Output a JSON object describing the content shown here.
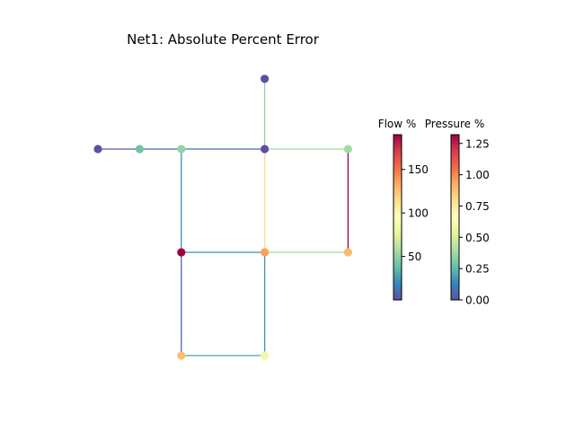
{
  "title": "Net1: Absolute Percent Error",
  "colorbars": {
    "flow": {
      "label": "Flow %",
      "range": [
        0,
        190
      ],
      "ticks": [
        {
          "value": 50,
          "label": "50"
        },
        {
          "value": 100,
          "label": "100"
        },
        {
          "value": 150,
          "label": "150"
        }
      ]
    },
    "pressure": {
      "label": "Pressure %",
      "range": [
        0,
        1.32
      ],
      "ticks": [
        {
          "value": 0.0,
          "label": "0.00"
        },
        {
          "value": 0.25,
          "label": "0.25"
        },
        {
          "value": 0.5,
          "label": "0.50"
        },
        {
          "value": 0.75,
          "label": "0.75"
        },
        {
          "value": 1.0,
          "label": "1.00"
        },
        {
          "value": 1.25,
          "label": "1.25"
        }
      ]
    }
  },
  "colormap": [
    "#5e4fa2",
    "#3288bd",
    "#66c2a5",
    "#abdda4",
    "#e6f598",
    "#ffffbf",
    "#fee08b",
    "#fdae61",
    "#f46d43",
    "#d53e4f",
    "#9e0142"
  ],
  "network": {
    "nodes": [
      {
        "id": "n1",
        "x": 0,
        "y": 2,
        "pressure_error": 0.0
      },
      {
        "id": "n2",
        "x": 1,
        "y": 2,
        "pressure_error": 0.28
      },
      {
        "id": "n3",
        "x": 2,
        "y": 2,
        "pressure_error": 0.35
      },
      {
        "id": "n4",
        "x": 4,
        "y": 2,
        "pressure_error": 0.0
      },
      {
        "id": "n5",
        "x": 6,
        "y": 2,
        "pressure_error": 0.38
      },
      {
        "id": "n6",
        "x": 4,
        "y": 3.7,
        "pressure_error": 0.0
      },
      {
        "id": "n7",
        "x": 2,
        "y": -0.5,
        "pressure_error": 1.32
      },
      {
        "id": "n8",
        "x": 4,
        "y": -0.5,
        "pressure_error": 0.95
      },
      {
        "id": "n9",
        "x": 6,
        "y": -0.5,
        "pressure_error": 0.9
      },
      {
        "id": "n10",
        "x": 2,
        "y": -3,
        "pressure_error": 0.88
      },
      {
        "id": "n11",
        "x": 4,
        "y": -3,
        "pressure_error": 0.58
      }
    ],
    "links": [
      {
        "from": "n1",
        "to": "n2",
        "flow_error": 4
      },
      {
        "from": "n2",
        "to": "n3",
        "flow_error": 8
      },
      {
        "from": "n3",
        "to": "n4",
        "flow_error": 10
      },
      {
        "from": "n4",
        "to": "n5",
        "flow_error": 55
      },
      {
        "from": "n4",
        "to": "n6",
        "flow_error": 50
      },
      {
        "from": "n4",
        "to": "n8",
        "flow_error": 115
      },
      {
        "from": "n3",
        "to": "n7",
        "flow_error": 22
      },
      {
        "from": "n5",
        "to": "n9",
        "flow_error": 190
      },
      {
        "from": "n7",
        "to": "n8",
        "flow_error": 22
      },
      {
        "from": "n8",
        "to": "n9",
        "flow_error": 55
      },
      {
        "from": "n7",
        "to": "n10",
        "flow_error": 8
      },
      {
        "from": "n8",
        "to": "n11",
        "flow_error": 22
      },
      {
        "from": "n10",
        "to": "n11",
        "flow_error": 28
      }
    ]
  }
}
